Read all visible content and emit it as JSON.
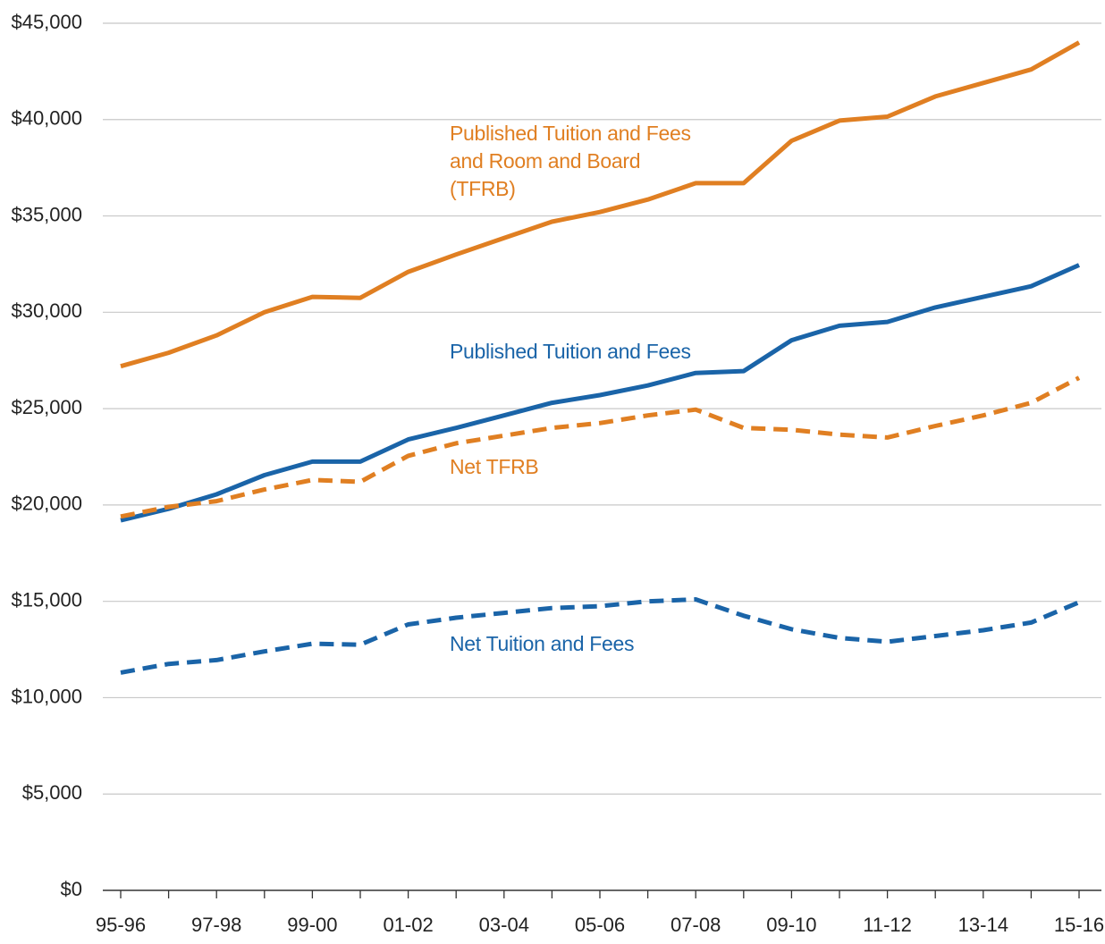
{
  "chart_data": {
    "type": "line",
    "categories": [
      "95-96",
      null,
      "97-98",
      null,
      "99-00",
      null,
      "01-02",
      null,
      "03-04",
      null,
      "05-06",
      null,
      "07-08",
      null,
      "09-10",
      null,
      "11-12",
      null,
      "13-14",
      null,
      "15-16"
    ],
    "ylim": [
      0,
      45000
    ],
    "yticks": [
      {
        "value": 0,
        "label": "$0"
      },
      {
        "value": 5000,
        "label": "$5,000"
      },
      {
        "value": 10000,
        "label": "$10,000"
      },
      {
        "value": 15000,
        "label": "$15,000"
      },
      {
        "value": 20000,
        "label": "$20,000"
      },
      {
        "value": 25000,
        "label": "$25,000"
      },
      {
        "value": 30000,
        "label": "$30,000"
      },
      {
        "value": 35000,
        "label": "$35,000"
      },
      {
        "value": 40000,
        "label": "$40,000"
      },
      {
        "value": 45000,
        "label": "$45,000"
      }
    ],
    "grid": true,
    "series": [
      {
        "name": "Published Tuition and Fees and Room and Board (TFRB)",
        "color": "#e07f22",
        "style": "solid",
        "values": [
          27200,
          27900,
          28800,
          30000,
          30800,
          30750,
          32100,
          33000,
          33850,
          34700,
          35200,
          35850,
          36700,
          36700,
          38900,
          39950,
          40150,
          41200,
          41900,
          42600,
          44000
        ]
      },
      {
        "name": "Published Tuition and Fees",
        "color": "#1a64a8",
        "style": "solid",
        "values": [
          19200,
          19800,
          20550,
          21550,
          22250,
          22250,
          23400,
          24000,
          24650,
          25300,
          25700,
          26200,
          26850,
          26950,
          28550,
          29300,
          29500,
          30250,
          30800,
          31350,
          32450
        ]
      },
      {
        "name": "Net TFRB",
        "color": "#e07f22",
        "style": "dashed",
        "values": [
          19400,
          19900,
          20200,
          20800,
          21300,
          21200,
          22550,
          23200,
          23600,
          24000,
          24250,
          24650,
          24950,
          24000,
          23900,
          23650,
          23500,
          24100,
          24650,
          25300,
          26600
        ]
      },
      {
        "name": "Net Tuition and Fees",
        "color": "#1a64a8",
        "style": "dashed",
        "values": [
          11300,
          11750,
          11950,
          12400,
          12800,
          12750,
          13800,
          14150,
          14400,
          14650,
          14750,
          15000,
          15100,
          14250,
          13550,
          13100,
          12900,
          13200,
          13500,
          13900,
          14950
        ]
      }
    ]
  }
}
